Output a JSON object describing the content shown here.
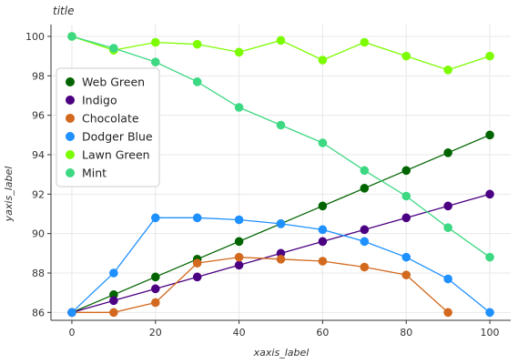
{
  "chart_data": {
    "type": "line",
    "title": "title",
    "xlabel": "xaxis_label",
    "ylabel": "yaxis_label",
    "xlim": [
      -5,
      105
    ],
    "ylim": [
      85.6,
      100.6
    ],
    "xticks": [
      0,
      20,
      40,
      60,
      80,
      100
    ],
    "yticks": [
      86,
      88,
      90,
      92,
      94,
      96,
      98,
      100
    ],
    "grid": true,
    "legend_position": "left",
    "x": [
      0,
      10,
      20,
      30,
      40,
      50,
      60,
      70,
      80,
      90,
      100
    ],
    "series": [
      {
        "name": "Web Green",
        "color": "#006400",
        "values": [
          86.0,
          86.9,
          87.8,
          88.7,
          89.6,
          90.5,
          91.4,
          92.3,
          93.2,
          94.1,
          95.0
        ]
      },
      {
        "name": "Indigo",
        "color": "#4b0082",
        "values": [
          86.0,
          86.6,
          87.2,
          87.8,
          88.4,
          89.0,
          89.6,
          90.2,
          90.8,
          91.4,
          92.0
        ]
      },
      {
        "name": "Chocolate",
        "color": "#d2691e",
        "values": [
          86.0,
          86.0,
          86.5,
          88.5,
          88.8,
          88.7,
          88.6,
          88.3,
          87.9,
          86.0,
          null
        ]
      },
      {
        "name": "Dodger Blue",
        "color": "#1e90ff",
        "values": [
          86.0,
          88.0,
          90.8,
          90.8,
          90.7,
          90.5,
          90.2,
          89.6,
          88.8,
          87.7,
          86.0
        ]
      },
      {
        "name": "Lawn Green",
        "color": "#7cfc00",
        "values": [
          100.0,
          99.3,
          99.7,
          99.6,
          99.2,
          99.8,
          98.8,
          99.7,
          99.0,
          98.3,
          99.0
        ]
      },
      {
        "name": "Mint",
        "color": "#3cd882",
        "values": [
          100.0,
          99.4,
          98.7,
          97.7,
          96.4,
          95.5,
          94.6,
          93.2,
          91.9,
          90.3,
          88.8
        ]
      }
    ]
  }
}
